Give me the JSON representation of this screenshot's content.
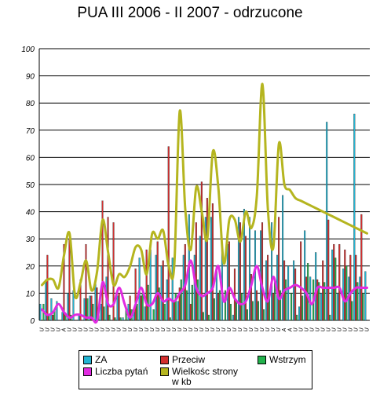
{
  "chart_data": {
    "type": "bar",
    "title": "PUA III 2006 - II 2007 - odrzucone",
    "xlabel": "",
    "ylabel": "",
    "ylim": [
      0,
      100
    ],
    "yticks": [
      0,
      10,
      20,
      30,
      40,
      50,
      60,
      70,
      80,
      90,
      100
    ],
    "grid": true,
    "legend_position": "bottom",
    "categories": [
      "U",
      "U",
      "U",
      "U",
      "A",
      "U",
      "U",
      "U",
      "U",
      "U",
      "U",
      "U",
      "U",
      "U",
      "U",
      "U",
      "U",
      "U",
      "U",
      "U",
      "U",
      "U",
      "U",
      "U",
      "U",
      "U",
      "U",
      "U",
      "U",
      "U",
      "U",
      "U",
      "U",
      "U",
      "U",
      "U",
      "U",
      "U",
      "U",
      "U",
      "U",
      "U",
      "U",
      "U",
      "A",
      "A",
      "U",
      "U",
      "U",
      "U",
      "U",
      "U",
      "U",
      "U",
      "U",
      "U",
      "U",
      "U",
      "U",
      "U"
    ],
    "series": [
      {
        "name": "ZA",
        "type": "bar",
        "color": "#23b4d2",
        "values": [
          6,
          15,
          8,
          7,
          3,
          10,
          11,
          2,
          8,
          9,
          15,
          6,
          16,
          0,
          9,
          1,
          6,
          3,
          23,
          5,
          26,
          24,
          20,
          15,
          23,
          7,
          24,
          39,
          24,
          31,
          38,
          38,
          20,
          26,
          28,
          2,
          38,
          41,
          38,
          33,
          33,
          22,
          36,
          24,
          46,
          20,
          22,
          5,
          33,
          16,
          25,
          10,
          73,
          26,
          10,
          19,
          16,
          76,
          16,
          18
        ]
      },
      {
        "name": "Przeciw",
        "type": "bar",
        "color": "#d32f2f",
        "values": [
          0,
          24,
          2,
          0,
          28,
          30,
          0,
          15,
          28,
          9,
          12,
          44,
          38,
          36,
          10,
          0,
          9,
          19,
          9,
          26,
          0,
          29,
          22,
          64,
          7,
          12,
          28,
          6,
          36,
          51,
          45,
          43,
          10,
          0,
          29,
          19,
          36,
          31,
          17,
          11,
          36,
          24,
          10,
          38,
          22,
          0,
          19,
          29,
          16,
          0,
          15,
          22,
          37,
          28,
          28,
          26,
          24,
          24,
          39,
          0
        ]
      },
      {
        "name": "Wstrzym",
        "type": "bar",
        "color": "#22b24c",
        "values": [
          6,
          2,
          4,
          0,
          2,
          2,
          0,
          0,
          8,
          6,
          3,
          5,
          2,
          1,
          1,
          4,
          4,
          6,
          10,
          13,
          4,
          12,
          6,
          1,
          10,
          15,
          11,
          13,
          15,
          3,
          2,
          8,
          11,
          11,
          6,
          7,
          10,
          4,
          7,
          7,
          4,
          9,
          14,
          11,
          15,
          10,
          2,
          9,
          21,
          15,
          14,
          14,
          2,
          23,
          0,
          20,
          7,
          14,
          10,
          0
        ]
      },
      {
        "name": "Liczba pytań",
        "type": "line",
        "color": "#e12be1",
        "values": [
          4,
          2,
          3,
          6,
          3,
          1,
          2,
          2,
          1,
          1,
          0,
          14,
          6,
          6,
          12,
          6,
          1,
          6,
          12,
          6,
          6,
          10,
          7,
          8,
          7,
          10,
          13,
          22,
          12,
          9,
          10,
          12,
          20,
          7,
          12,
          8,
          6,
          7,
          13,
          20,
          12,
          7,
          16,
          8,
          11,
          12,
          13,
          12,
          10,
          6,
          12,
          12,
          12,
          12,
          12,
          7,
          10,
          12,
          12,
          12
        ]
      },
      {
        "name": "Wielkośc strony\nw kb",
        "type": "line",
        "color": "#b5b51f",
        "values": [
          13,
          15,
          15,
          12,
          24,
          32,
          9,
          14,
          22,
          11,
          18,
          37,
          25,
          13,
          17,
          16,
          20,
          27,
          26,
          17,
          32,
          30,
          33,
          20,
          20,
          77,
          41,
          26,
          49,
          40,
          30,
          62,
          49,
          21,
          37,
          37,
          29,
          40,
          34,
          46,
          87,
          41,
          27,
          65,
          50,
          48,
          45,
          44,
          43,
          42,
          41,
          40,
          39,
          38,
          37,
          36,
          35,
          34,
          33,
          32
        ]
      }
    ]
  }
}
